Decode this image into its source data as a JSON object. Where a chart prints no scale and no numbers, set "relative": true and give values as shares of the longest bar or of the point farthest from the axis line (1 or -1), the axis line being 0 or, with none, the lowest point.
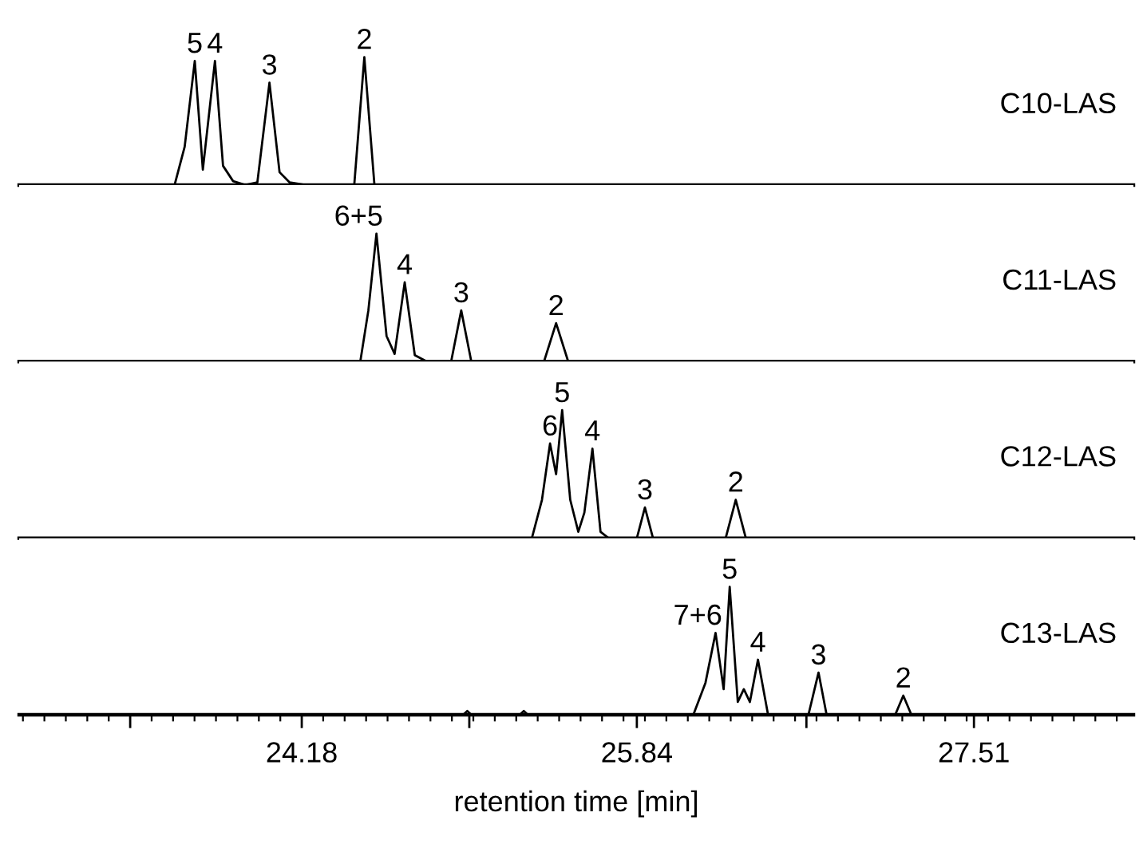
{
  "chart_data": [
    {
      "type": "line",
      "relative": true,
      "title": "C10-LAS",
      "xlim": [
        22.78,
        28.3
      ],
      "xticks": [
        {
          "value": 23.33,
          "label": null
        },
        24.18,
        {
          "value": 25.01,
          "label": null
        },
        25.84,
        {
          "value": 26.68,
          "label": null
        },
        27.51
      ],
      "tick_labels": false,
      "grid": false,
      "legend": false,
      "marker": "none",
      "line_style": "solid",
      "series": [
        {
          "color": "#000000",
          "x": [
            22.78,
            23.55,
            23.6,
            23.65,
            23.69,
            23.75,
            23.79,
            23.84,
            23.9,
            23.96,
            24.02,
            24.07,
            24.12,
            24.2,
            24.44,
            24.49,
            24.54,
            28.3
          ],
          "values": [
            0,
            0,
            0.3,
            0.97,
            0.12,
            0.97,
            0.15,
            0.03,
            0,
            0.02,
            0.8,
            0.1,
            0.02,
            0,
            0,
            1,
            0,
            0
          ]
        }
      ],
      "annotations": [
        {
          "text": "5",
          "x": 23.65,
          "y": 0.97
        },
        {
          "text": "4",
          "x": 23.75,
          "y": 0.97
        },
        {
          "text": "3",
          "x": 24.02,
          "y": 0.8
        },
        {
          "text": "2",
          "x": 24.49,
          "y": 1
        }
      ]
    },
    {
      "type": "line",
      "relative": true,
      "title": "C11-LAS",
      "xlim": [
        22.78,
        28.3
      ],
      "xticks": [
        {
          "value": 23.33,
          "label": null
        },
        24.18,
        {
          "value": 25.01,
          "label": null
        },
        25.84,
        {
          "value": 26.68,
          "label": null
        },
        27.51
      ],
      "tick_labels": false,
      "grid": false,
      "legend": false,
      "marker": "none",
      "line_style": "solid",
      "series": [
        {
          "color": "#000000",
          "x": [
            22.78,
            24.47,
            24.51,
            24.55,
            24.6,
            24.64,
            24.69,
            24.74,
            24.8,
            24.92,
            24.97,
            25.02,
            25.38,
            25.44,
            25.5,
            28.3
          ],
          "values": [
            0,
            0,
            0.4,
            1,
            0.2,
            0.06,
            0.62,
            0.05,
            0,
            0,
            0.4,
            0,
            0,
            0.3,
            0,
            0
          ]
        }
      ],
      "annotations": [
        {
          "text": "6+5",
          "x": 24.55,
          "y": 1
        },
        {
          "text": "4",
          "x": 24.69,
          "y": 0.62
        },
        {
          "text": "3",
          "x": 24.97,
          "y": 0.4
        },
        {
          "text": "2",
          "x": 25.44,
          "y": 0.3
        }
      ]
    },
    {
      "type": "line",
      "relative": true,
      "title": "C12-LAS",
      "xlim": [
        22.78,
        28.3
      ],
      "xticks": [
        {
          "value": 23.33,
          "label": null
        },
        24.18,
        {
          "value": 25.01,
          "label": null
        },
        25.84,
        {
          "value": 26.68,
          "label": null
        },
        27.51
      ],
      "tick_labels": false,
      "grid": false,
      "legend": false,
      "marker": "none",
      "line_style": "solid",
      "series": [
        {
          "color": "#000000",
          "x": [
            22.78,
            25.32,
            25.37,
            25.41,
            25.44,
            25.47,
            25.51,
            25.55,
            25.58,
            25.62,
            25.66,
            25.7,
            25.84,
            25.88,
            25.92,
            26.28,
            26.33,
            26.38,
            28.3
          ],
          "values": [
            0,
            0,
            0.3,
            0.74,
            0.5,
            1,
            0.3,
            0.05,
            0.2,
            0.7,
            0.05,
            0,
            0,
            0.24,
            0,
            0,
            0.3,
            0,
            0
          ]
        }
      ],
      "annotations": [
        {
          "text": "6",
          "x": 25.41,
          "y": 0.74
        },
        {
          "text": "5",
          "x": 25.47,
          "y": 1
        },
        {
          "text": "4",
          "x": 25.62,
          "y": 0.7
        },
        {
          "text": "3",
          "x": 25.88,
          "y": 0.24
        },
        {
          "text": "2",
          "x": 26.33,
          "y": 0.3
        }
      ]
    },
    {
      "type": "line",
      "relative": true,
      "title": "C13-LAS",
      "xlim": [
        22.78,
        28.3
      ],
      "xticks": [
        {
          "value": 23.33,
          "label": null
        },
        24.18,
        {
          "value": 25.01,
          "label": null
        },
        25.84,
        {
          "value": 26.68,
          "label": null
        },
        27.51
      ],
      "tick_labels": "x",
      "xlabel": "retention time [min]",
      "grid": false,
      "legend": false,
      "marker": "none",
      "line_style": "solid",
      "series": [
        {
          "color": "#000000",
          "x": [
            22.78,
            24.98,
            25.0,
            25.02,
            25.26,
            25.28,
            25.3,
            26.12,
            26.18,
            26.23,
            26.27,
            26.3,
            26.34,
            26.37,
            26.4,
            26.44,
            26.49,
            26.69,
            26.74,
            26.78,
            27.12,
            27.16,
            27.2,
            28.3
          ],
          "values": [
            0,
            0,
            0.03,
            0,
            0,
            0.03,
            0,
            0,
            0.25,
            0.64,
            0.2,
            1,
            0.1,
            0.2,
            0.1,
            0.43,
            0,
            0,
            0.33,
            0,
            0,
            0.15,
            0,
            0
          ]
        }
      ],
      "annotations": [
        {
          "text": "7+6",
          "x": 26.23,
          "y": 0.64
        },
        {
          "text": "5",
          "x": 26.3,
          "y": 1
        },
        {
          "text": "4",
          "x": 26.44,
          "y": 0.43
        },
        {
          "text": "3",
          "x": 26.74,
          "y": 0.33
        },
        {
          "text": "2",
          "x": 27.16,
          "y": 0.15
        }
      ]
    }
  ]
}
